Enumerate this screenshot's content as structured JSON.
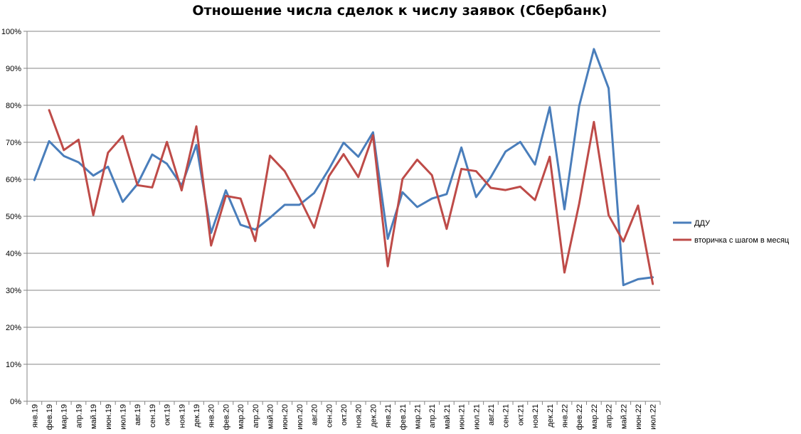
{
  "chart_data": {
    "type": "line",
    "title": "Отношение числа сделок к числу заявок (Сбербанк)",
    "xlabel": "",
    "ylabel": "",
    "ylim": [
      0,
      100
    ],
    "y_ticks": [
      "0%",
      "10%",
      "20%",
      "30%",
      "40%",
      "50%",
      "60%",
      "70%",
      "80%",
      "90%",
      "100%"
    ],
    "grid": true,
    "legend_position": "right",
    "categories": [
      "янв.19",
      "фев.19",
      "мар.19",
      "апр.19",
      "май.19",
      "июн.19",
      "июл.19",
      "авг.19",
      "сен.19",
      "окт.19",
      "ноя.19",
      "дек.19",
      "янв.20",
      "фев.20",
      "мар.20",
      "апр.20",
      "май.20",
      "июн.20",
      "июл.20",
      "авг.20",
      "сен.20",
      "окт.20",
      "ноя.20",
      "дек.20",
      "янв.21",
      "фев.21",
      "мар.21",
      "апр.21",
      "май.21",
      "июн.21",
      "июл.21",
      "авг.21",
      "сен.21",
      "окт.21",
      "ноя.21",
      "дек.21",
      "янв.22",
      "фев.22",
      "мар.22",
      "апр.22",
      "май.22",
      "июн.22",
      "июл.22"
    ],
    "series": [
      {
        "name": "ДДУ",
        "color": "#4A7EBB",
        "values": [
          59.8,
          70.3,
          66.3,
          64.6,
          61.0,
          63.4,
          53.9,
          58.7,
          66.7,
          64.2,
          58.3,
          69.3,
          45.5,
          57.0,
          47.7,
          46.4,
          49.6,
          53.1,
          53.1,
          56.3,
          62.7,
          69.9,
          66.1,
          72.7,
          43.9,
          56.5,
          52.5,
          54.8,
          56.0,
          68.6,
          55.2,
          60.6,
          67.5,
          70.1,
          64.0,
          79.5,
          51.9,
          79.8,
          95.2,
          84.6,
          31.4,
          33.0,
          33.5
        ]
      },
      {
        "name": "вторичка с шагом в месяц",
        "color": "#BE4B48",
        "values": [
          null,
          78.7,
          67.9,
          70.7,
          50.3,
          67.2,
          71.7,
          58.4,
          57.8,
          70.1,
          57.0,
          74.3,
          42.1,
          55.5,
          54.8,
          43.3,
          66.4,
          62.2,
          55.0,
          46.9,
          60.8,
          66.8,
          60.6,
          71.9,
          36.5,
          60.1,
          65.3,
          61.1,
          46.6,
          62.8,
          62.2,
          57.7,
          57.1,
          58.0,
          54.4,
          66.1,
          34.8,
          53.4,
          75.5,
          50.3,
          43.2,
          52.9,
          31.7
        ]
      }
    ]
  }
}
